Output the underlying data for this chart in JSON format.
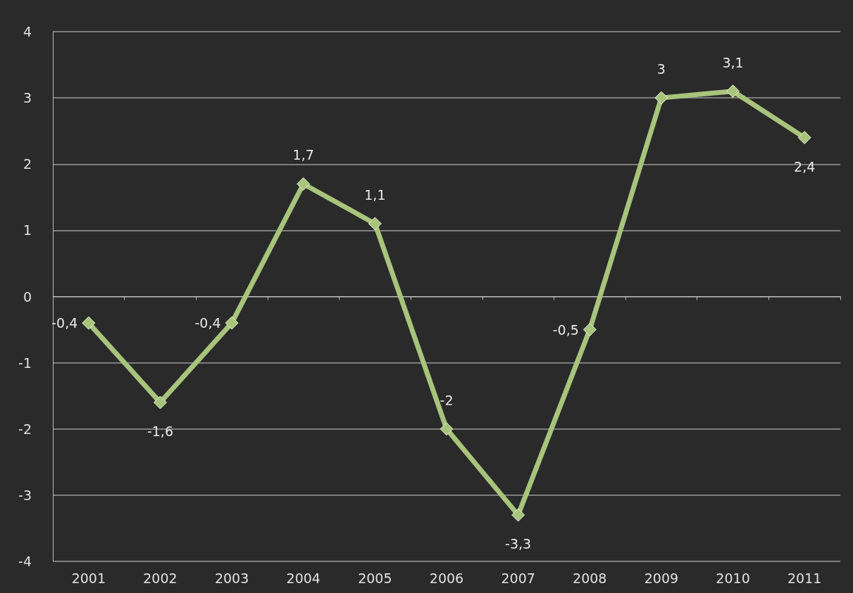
{
  "chart_data": {
    "type": "line",
    "categories": [
      "2001",
      "2002",
      "2003",
      "2004",
      "2005",
      "2006",
      "2007",
      "2008",
      "2009",
      "2010",
      "2011"
    ],
    "series": [
      {
        "color": "#a8c47c",
        "values": [
          -0.4,
          -1.6,
          -0.4,
          1.7,
          1.1,
          -2,
          -3.3,
          -0.5,
          3,
          3.1,
          2.4
        ],
        "value_labels": [
          "-0,4",
          "-1,6",
          "-0,4",
          "1,7",
          "1,1",
          "-2",
          "-3,3",
          "-0,5",
          "3",
          "3,1",
          "2,4"
        ]
      }
    ],
    "ylim": [
      -4,
      4
    ],
    "yticks": [
      -4,
      -3,
      -2,
      -1,
      0,
      1,
      2,
      3,
      4
    ],
    "grid": "y",
    "marker": "diamond",
    "line_style": "solid"
  }
}
